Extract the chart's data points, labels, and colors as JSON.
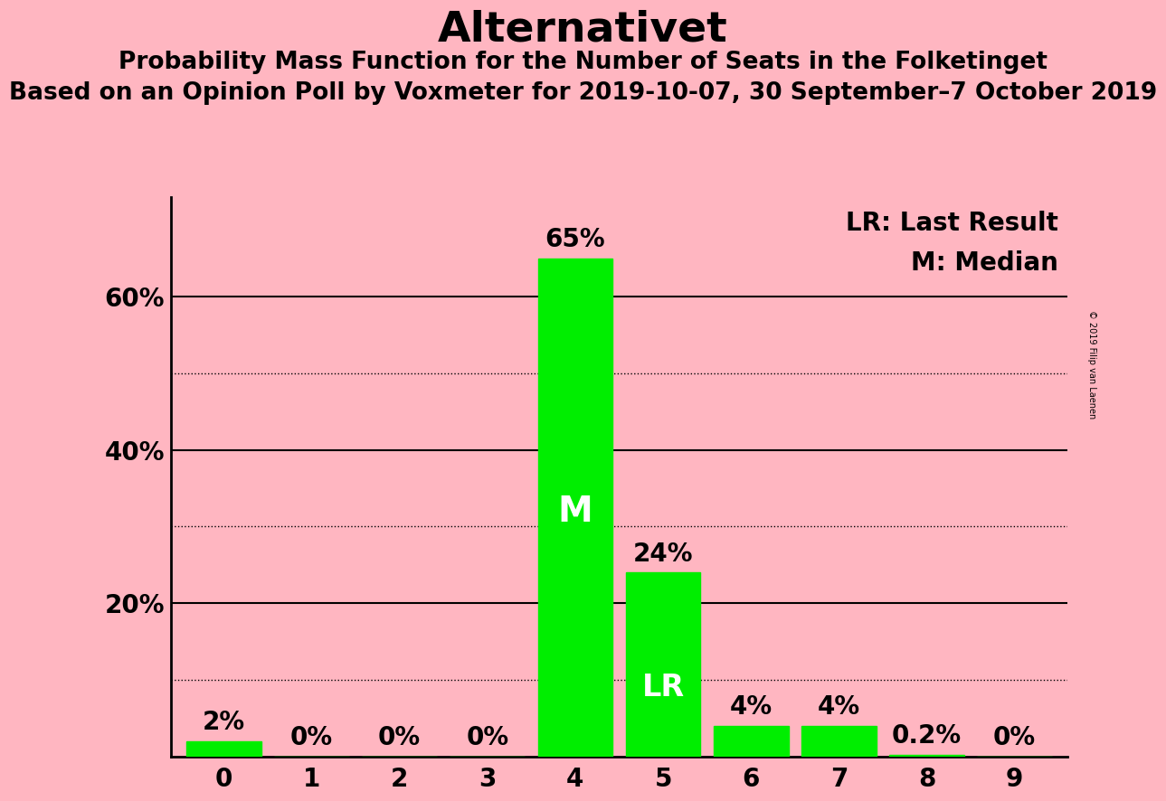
{
  "title": "Alternativet",
  "subtitle1": "Probability Mass Function for the Number of Seats in the Folketinget",
  "subtitle2": "Based on an Opinion Poll by Voxmeter for 2019-10-07, 30 September–7 October 2019",
  "copyright": "© 2019 Filip van Laenen",
  "categories": [
    0,
    1,
    2,
    3,
    4,
    5,
    6,
    7,
    8,
    9
  ],
  "values": [
    2,
    0,
    0,
    0,
    65,
    24,
    4,
    4,
    0.2,
    0
  ],
  "bar_color": "#00ee00",
  "background_color": "#ffb6c1",
  "label_color": "#000000",
  "median_bar": 4,
  "last_result_bar": 5,
  "legend_lr": "LR: Last Result",
  "legend_m": "M: Median",
  "ytick_positions": [
    0,
    20,
    40,
    60
  ],
  "ytick_labels": [
    "",
    "20%",
    "40%",
    "60%"
  ],
  "solid_lines": [
    20,
    40,
    60
  ],
  "dotted_lines": [
    10,
    30,
    50
  ],
  "ylim": [
    0,
    73
  ],
  "bar_label_values": [
    "2%",
    "0%",
    "0%",
    "0%",
    "65%",
    "24%",
    "4%",
    "4%",
    "0.2%",
    "0%"
  ],
  "title_fontsize": 34,
  "subtitle_fontsize": 19,
  "tick_fontsize": 20,
  "bar_label_fontsize": 20,
  "legend_fontsize": 20,
  "m_fontsize": 28,
  "lr_fontsize": 24
}
